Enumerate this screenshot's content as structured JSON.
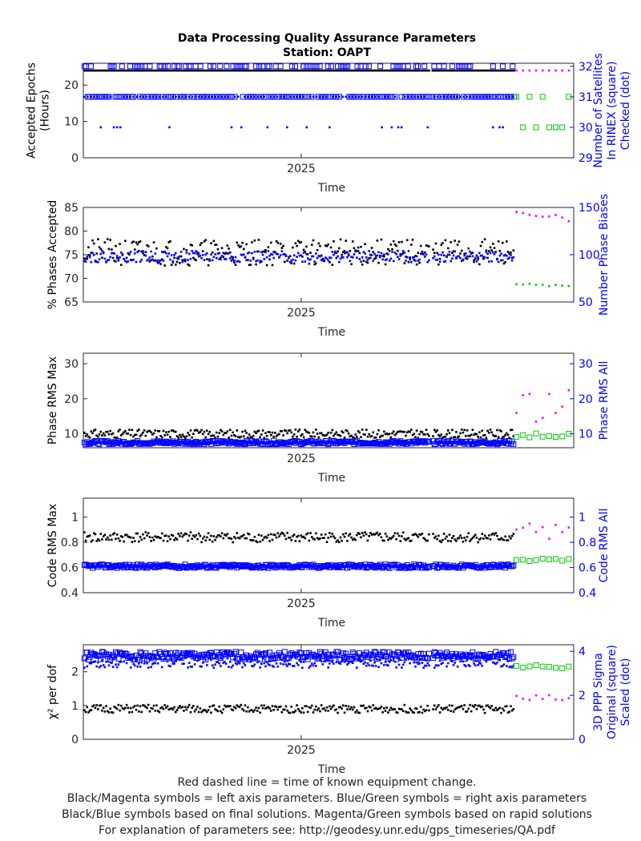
{
  "title": {
    "line1": "Data Processing Quality Assurance Parameters",
    "line2": "Station: OAPT"
  },
  "footer": {
    "line1": "Red dashed line = time of known equipment change.",
    "line2": "Black/Magenta symbols = left axis parameters. Blue/Green symbols = right axis parameters",
    "line3": "Black/Blue symbols based on final solutions.  Magenta/Green symbols based on rapid solutions",
    "line4": "For explanation of parameters see: http://geodesy.unr.edu/gps_timeseries/QA.pdf"
  },
  "colors": {
    "final_left": "#000000",
    "final_right": "#0000ff",
    "rapid_left": "#ff00ff",
    "rapid_right": "#00cc00",
    "axis_right": "#0000ff"
  },
  "chart_data": [
    {
      "type": "scatter",
      "xlabel": "Time",
      "x_range": [
        2024.6,
        2025.5
      ],
      "x_ticks": [
        {
          "value": 2025.0,
          "label": "2025"
        }
      ],
      "y_left": {
        "label_lines": [
          "Accepted Epochs",
          "(Hours)"
        ],
        "range": [
          0,
          26
        ],
        "ticks": [
          0,
          10,
          20
        ]
      },
      "y_right": {
        "label_lines": [
          "Number of Satellites",
          "In RINEX (square)",
          "Checked (dot)"
        ],
        "range": [
          29,
          32.1
        ],
        "ticks": [
          29,
          30,
          31,
          32
        ]
      },
      "series": [
        {
          "role": "final_left",
          "side": "left",
          "marker": "dot",
          "base": 24,
          "spread": 0,
          "outlier": 0,
          "outlier_value": 24,
          "step": 0.003,
          "seed": 11
        },
        {
          "role": "final_right",
          "side": "right",
          "marker": "square",
          "base": 31,
          "spread": 0,
          "outlier": 0.35,
          "outlier_value": 32,
          "step": 0.003,
          "seed": 12
        },
        {
          "role": "final_right",
          "side": "right",
          "marker": "dot",
          "base": 31,
          "spread": 0,
          "outlier": 0.12,
          "outlier_value": 30,
          "step": 0.006,
          "seed": 13
        },
        {
          "role": "rapid_left",
          "side": "left",
          "marker": "dot",
          "base": 24,
          "spread": 0,
          "outlier": 0,
          "outlier_value": 24,
          "rapid": true,
          "seed": 14
        },
        {
          "role": "rapid_right",
          "side": "right",
          "marker": "square",
          "base": 31,
          "spread": 0,
          "outlier": 0.3,
          "outlier_value": 30,
          "rapid": true,
          "seed": 15
        }
      ]
    },
    {
      "type": "scatter",
      "xlabel": "Time",
      "x_range": [
        2024.6,
        2025.5
      ],
      "x_ticks": [
        {
          "value": 2025.0,
          "label": "2025"
        }
      ],
      "y_left": {
        "label_lines": [
          "% Phases Accepted"
        ],
        "range": [
          65,
          85
        ],
        "ticks": [
          65,
          70,
          75,
          80,
          85
        ]
      },
      "y_right": {
        "label_lines": [
          "Number Phase Biases"
        ],
        "range": [
          50,
          150
        ],
        "ticks": [
          50,
          100,
          150
        ]
      },
      "series": [
        {
          "role": "final_left",
          "side": "left",
          "marker": "dot",
          "base": 75.5,
          "spread": 2.8,
          "step": 0.0025,
          "seed": 21
        },
        {
          "role": "final_right",
          "side": "right",
          "marker": "dot",
          "base": 98,
          "spread": 6,
          "step": 0.0025,
          "seed": 22
        },
        {
          "role": "rapid_left",
          "side": "left",
          "marker": "dot",
          "base": 83,
          "spread": 1.2,
          "rapid": true,
          "seed": 23
        },
        {
          "role": "rapid_right",
          "side": "right",
          "marker": "dot",
          "base": 68,
          "spread": 1.5,
          "rapid": true,
          "seed": 24
        }
      ]
    },
    {
      "type": "scatter",
      "xlabel": "Time",
      "x_range": [
        2024.6,
        2025.5
      ],
      "x_ticks": [
        {
          "value": 2025.0,
          "label": "2025"
        }
      ],
      "y_left": {
        "label_lines": [
          "Phase RMS Max"
        ],
        "range": [
          6,
          33
        ],
        "ticks": [
          10,
          20,
          30
        ]
      },
      "y_right": {
        "label_lines": [
          "Phase RMS All"
        ],
        "range": [
          6,
          33
        ],
        "ticks": [
          10,
          20,
          30
        ]
      },
      "series": [
        {
          "role": "final_left",
          "side": "left",
          "marker": "dot",
          "base": 10,
          "spread": 1.2,
          "step": 0.0025,
          "seed": 31
        },
        {
          "role": "final_right",
          "side": "right",
          "marker": "square",
          "base": 7.5,
          "spread": 0.5,
          "step": 0.0025,
          "seed": 32
        },
        {
          "role": "rapid_left",
          "side": "left",
          "marker": "dot",
          "base": 18,
          "spread": 5,
          "rapid": true,
          "seed": 33
        },
        {
          "role": "rapid_right",
          "side": "right",
          "marker": "square",
          "base": 9.5,
          "spread": 0.6,
          "rapid": true,
          "seed": 34
        }
      ]
    },
    {
      "type": "scatter",
      "xlabel": "Time",
      "x_range": [
        2024.6,
        2025.5
      ],
      "x_ticks": [
        {
          "value": 2025.0,
          "label": "2025"
        }
      ],
      "y_left": {
        "label_lines": [
          "Code RMS Max"
        ],
        "range": [
          0.4,
          1.15
        ],
        "ticks": [
          0.4,
          0.6,
          0.8,
          1
        ]
      },
      "y_right": {
        "label_lines": [
          "Code RMS All"
        ],
        "range": [
          0.4,
          1.15
        ],
        "ticks": [
          0.4,
          0.6,
          0.8,
          1
        ]
      },
      "series": [
        {
          "role": "final_left",
          "side": "left",
          "marker": "dot",
          "base": 0.84,
          "spread": 0.04,
          "step": 0.0025,
          "seed": 41
        },
        {
          "role": "final_right",
          "side": "right",
          "marker": "square",
          "base": 0.61,
          "spread": 0.015,
          "step": 0.0025,
          "seed": 42
        },
        {
          "role": "rapid_left",
          "side": "left",
          "marker": "dot",
          "base": 0.88,
          "spread": 0.07,
          "rapid": true,
          "seed": 43
        },
        {
          "role": "rapid_right",
          "side": "right",
          "marker": "square",
          "base": 0.66,
          "spread": 0.015,
          "rapid": true,
          "seed": 44
        }
      ]
    },
    {
      "type": "scatter",
      "xlabel": "Time",
      "x_range": [
        2024.6,
        2025.5
      ],
      "x_ticks": [
        {
          "value": 2025.0,
          "label": "2025"
        }
      ],
      "y_left": {
        "label_lines": [
          "χ² per dof"
        ],
        "range": [
          0,
          2.8
        ],
        "ticks": [
          0,
          1,
          2
        ]
      },
      "y_right": {
        "label_lines": [
          "3D PPP Sigma",
          "Original (square)",
          "Scaled (dot)"
        ],
        "range": [
          0,
          4.3
        ],
        "ticks": [
          0,
          2,
          4
        ]
      },
      "series": [
        {
          "role": "final_left",
          "side": "left",
          "marker": "dot",
          "base": 0.9,
          "spread": 0.12,
          "step": 0.0025,
          "seed": 51
        },
        {
          "role": "final_right",
          "side": "right",
          "marker": "square",
          "base": 3.8,
          "spread": 0.18,
          "step": 0.0025,
          "seed": 52
        },
        {
          "role": "final_right",
          "side": "right",
          "marker": "dot",
          "base": 3.5,
          "spread": 0.25,
          "step": 0.0025,
          "seed": 53
        },
        {
          "role": "rapid_left",
          "side": "left",
          "marker": "dot",
          "base": 1.2,
          "spread": 0.12,
          "rapid": true,
          "seed": 54
        },
        {
          "role": "rapid_right",
          "side": "right",
          "marker": "square",
          "base": 3.3,
          "spread": 0.1,
          "rapid": true,
          "seed": 55
        }
      ]
    }
  ]
}
